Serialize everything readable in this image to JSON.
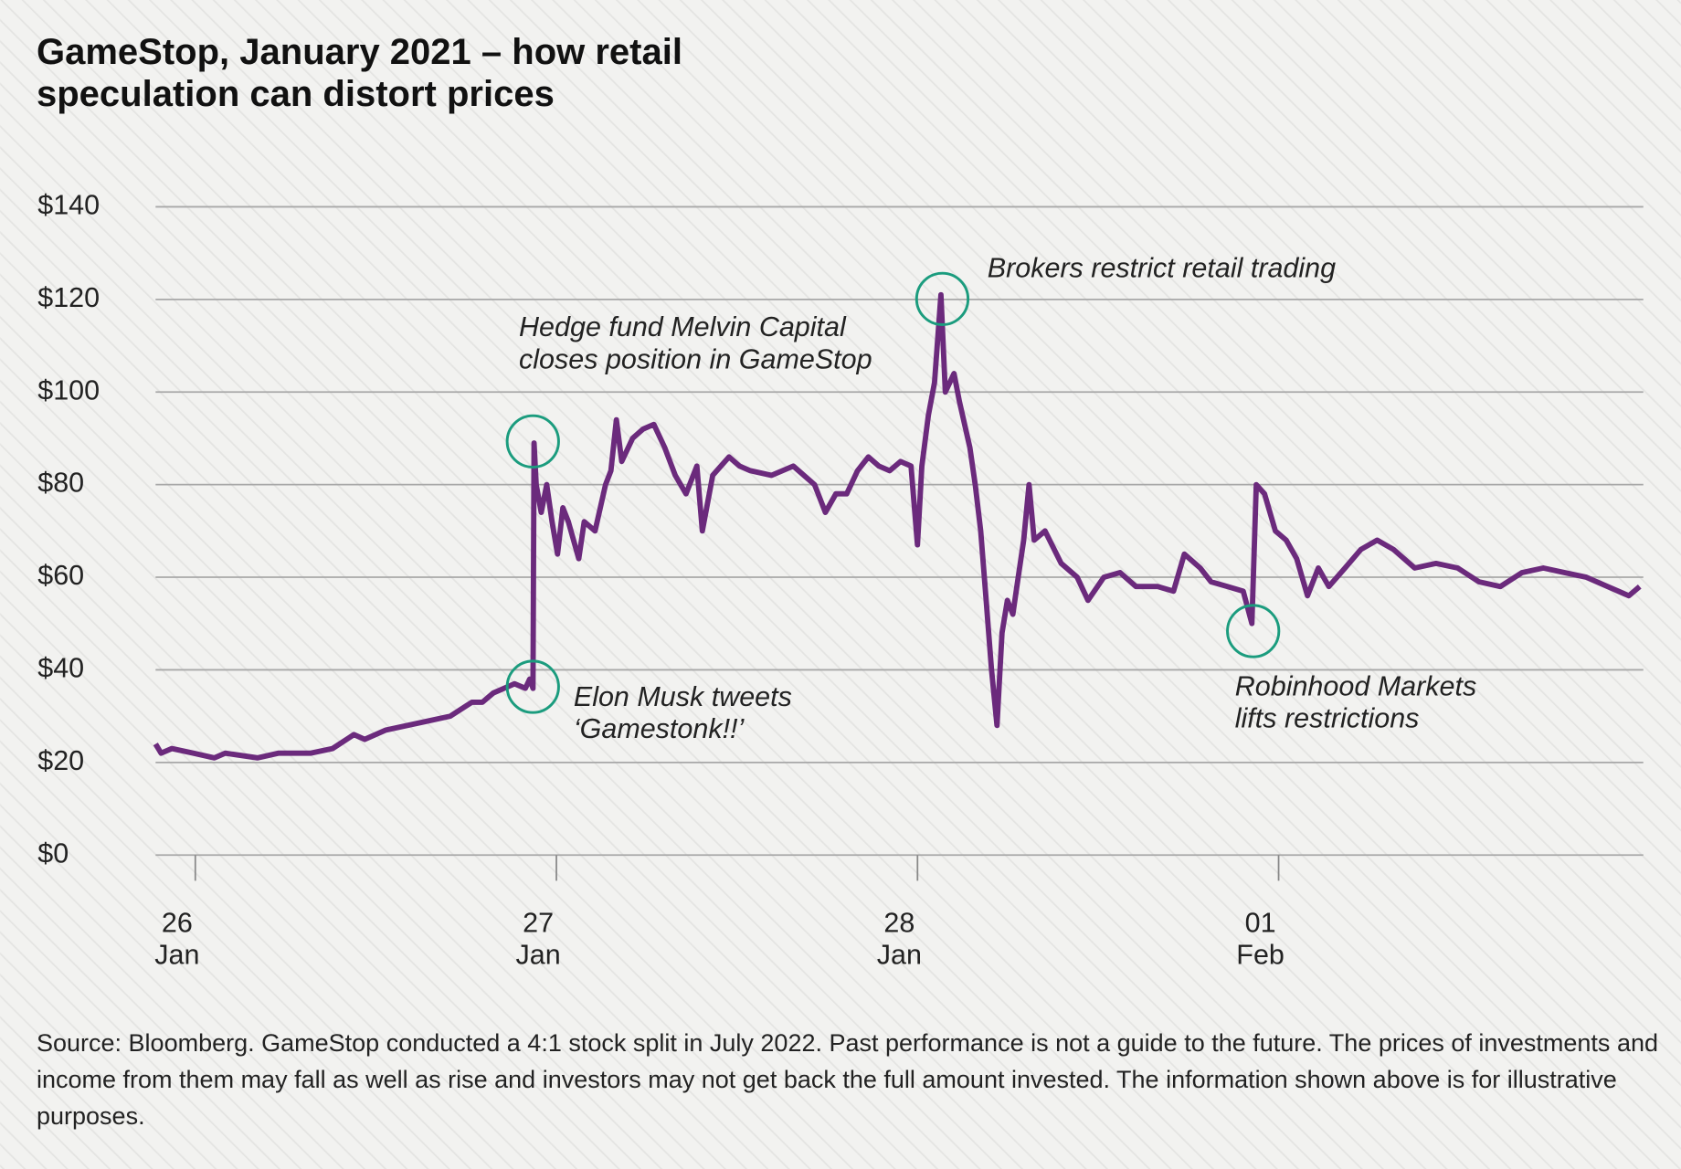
{
  "chart_data": {
    "type": "line",
    "title": "GameStop, January 2021 – how retail speculation can distort prices",
    "source": "Source: Bloomberg. GameStop conducted a 4:1 stock split in July 2022. Past performance is not a guide to the future. The prices of investments and income from them may fall as well as rise and investors may not get back the full amount invested. The information shown above is for illustrative purposes.",
    "x": [
      -0.11,
      -0.095,
      -0.065,
      -0.006,
      0.053,
      0.083,
      0.172,
      0.231,
      0.32,
      0.38,
      0.439,
      0.469,
      0.528,
      0.588,
      0.647,
      0.706,
      0.766,
      0.795,
      0.825,
      0.855,
      0.884,
      0.914,
      0.926,
      0.935,
      0.938,
      0.944,
      0.958,
      0.973,
      0.988,
      1.003,
      1.018,
      1.033,
      1.062,
      1.077,
      1.107,
      1.136,
      1.151,
      1.166,
      1.181,
      1.211,
      1.24,
      1.27,
      1.3,
      1.329,
      1.359,
      1.389,
      1.404,
      1.433,
      1.478,
      1.507,
      1.537,
      1.596,
      1.656,
      1.715,
      1.745,
      1.774,
      1.804,
      1.834,
      1.864,
      1.893,
      1.923,
      1.953,
      1.982,
      2.0,
      2.012,
      2.03,
      2.047,
      2.065,
      2.077,
      2.101,
      2.116,
      2.145,
      2.16,
      2.175,
      2.19,
      2.205,
      2.22,
      2.234,
      2.249,
      2.264,
      2.279,
      2.294,
      2.309,
      2.323,
      2.353,
      2.398,
      2.442,
      2.472,
      2.516,
      2.561,
      2.605,
      2.665,
      2.709,
      2.739,
      2.783,
      2.813,
      2.858,
      2.902,
      2.926,
      2.938,
      2.961,
      2.991,
      3.021,
      3.05,
      3.08,
      3.11,
      3.139,
      3.184,
      3.228,
      3.273,
      3.318,
      3.377,
      3.436,
      3.496,
      3.555,
      3.614,
      3.674,
      3.733,
      3.792,
      3.852,
      3.911,
      3.97,
      4.0
    ],
    "series": [
      {
        "color": "#6b2a7c",
        "values": [
          24,
          22,
          23,
          22,
          21,
          22,
          21,
          22,
          22,
          23,
          26,
          25,
          27,
          28,
          29,
          30,
          33,
          33,
          35,
          36,
          37,
          36,
          38,
          36,
          89,
          80,
          74,
          80,
          72,
          65,
          75,
          72,
          64,
          72,
          70,
          80,
          83,
          94,
          85,
          90,
          92,
          93,
          88,
          82,
          78,
          84,
          70,
          82,
          86,
          84,
          83,
          82,
          84,
          80,
          74,
          78,
          78,
          83,
          86,
          84,
          83,
          85,
          84,
          67,
          84,
          95,
          102,
          121,
          100,
          104,
          98,
          88,
          80,
          70,
          55,
          40,
          28,
          48,
          55,
          52,
          60,
          68,
          80,
          68,
          70,
          63,
          60,
          55,
          60,
          61,
          58,
          58,
          57,
          65,
          62,
          59,
          58,
          57,
          50,
          80,
          78,
          70,
          68,
          64,
          56,
          62,
          58,
          62,
          66,
          68,
          66,
          62,
          63,
          62,
          59,
          58,
          61,
          62,
          61,
          60,
          58,
          56,
          58
        ]
      }
    ],
    "xlim": [
      -0.11,
      4.01
    ],
    "xticks": [
      {
        "value": 0,
        "label": "26 Jan"
      },
      {
        "value": 1,
        "label": "27 Jan"
      },
      {
        "value": 2,
        "label": "28 Jan"
      },
      {
        "value": 3,
        "label": "01 Feb"
      }
    ],
    "ylim": [
      0,
      140
    ],
    "yticks": [
      {
        "value": 0,
        "label": "$0"
      },
      {
        "value": 20,
        "label": "$20"
      },
      {
        "value": 40,
        "label": "$40"
      },
      {
        "value": 60,
        "label": "$60"
      },
      {
        "value": 80,
        "label": "$80"
      },
      {
        "value": 100,
        "label": "$100"
      },
      {
        "value": 120,
        "label": "$120"
      },
      {
        "value": 140,
        "label": "$140"
      }
    ],
    "grid": true,
    "annotations": [
      {
        "text": [
          "Hedge fund Melvin Capital",
          "closes position in GameStop"
        ]
      },
      {
        "text": [
          "Elon Musk tweets",
          "‘Gamestonk!!’"
        ]
      },
      {
        "text": [
          "Brokers restrict retail trading"
        ]
      },
      {
        "text": [
          "Robinhood Markets",
          "lifts restrictions"
        ]
      }
    ],
    "highlight_color": "#1b9c7e"
  }
}
